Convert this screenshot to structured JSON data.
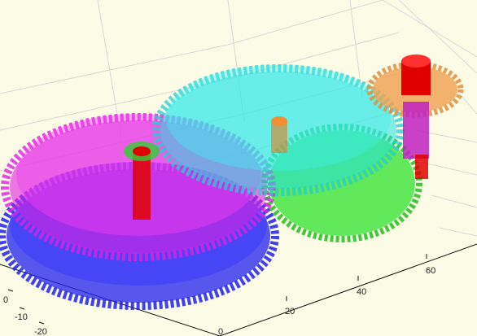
{
  "figure": {
    "background": "#fbfbe6",
    "grid": true,
    "axes": {
      "x_ticks": [
        "20",
        "40",
        "60"
      ],
      "y_ticks": [
        "0",
        "-10",
        "-20"
      ],
      "bottom_tick": "0"
    }
  },
  "chart_data": {
    "type": "3d-surface",
    "title": "",
    "xlabel": "",
    "ylabel": "",
    "zlabel": "",
    "grid": true,
    "x_ticks": [
      20,
      40,
      60
    ],
    "y_ticks": [
      0,
      -10,
      -20
    ],
    "gears": [
      {
        "name": "",
        "color": "#2020f0",
        "teeth": 60
      },
      {
        "name": "",
        "color": "#e020e0",
        "teeth": 60
      },
      {
        "name": "",
        "color": "#20e020",
        "teeth": 56
      },
      {
        "name": "",
        "color": "#20e0e0",
        "teeth": 60
      },
      {
        "name": "",
        "color": "#f0a050",
        "teeth": 22
      }
    ],
    "shafts": [
      {
        "color": "#e00000"
      },
      {
        "color": "#e08020"
      },
      {
        "color": "#c020c0"
      }
    ]
  }
}
